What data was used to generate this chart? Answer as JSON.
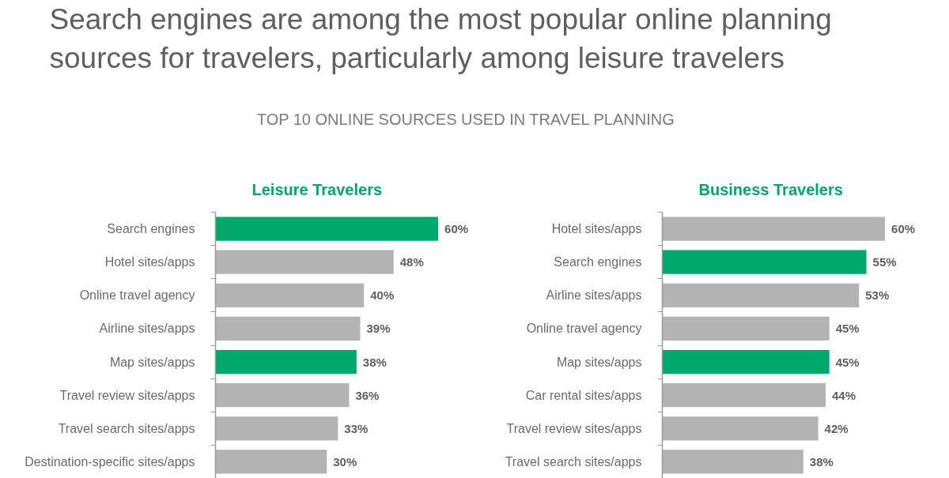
{
  "chart_data": [
    {
      "type": "other",
      "title": "Search engines are among the most popular online planning sources for travelers, particularly among leisure travelers",
      "subtitle": "TOP 10 ONLINE SOURCES USED IN TRAVEL PLANNING"
    },
    {
      "type": "bar",
      "orientation": "horizontal",
      "title": "Leisure Travelers",
      "categories": [
        "Search engines",
        "Hotel sites/apps",
        "Online travel agency",
        "Airline sites/apps",
        "Map sites/apps",
        "Travel review sites/apps",
        "Travel search sites/apps",
        "Destination-specific sites/apps"
      ],
      "values": [
        60,
        48,
        40,
        39,
        38,
        36,
        33,
        30
      ],
      "colors": [
        "#00a86b",
        "#b3b3b3",
        "#b3b3b3",
        "#b3b3b3",
        "#00a86b",
        "#b3b3b3",
        "#b3b3b3",
        "#b3b3b3"
      ],
      "value_labels": [
        "60%",
        "48%",
        "40%",
        "39%",
        "38%",
        "36%",
        "33%",
        "30%"
      ]
    },
    {
      "type": "bar",
      "orientation": "horizontal",
      "title": "Business Travelers",
      "categories": [
        "Hotel sites/apps",
        "Search engines",
        "Airline sites/apps",
        "Online travel agency",
        "Map sites/apps",
        "Car rental sites/apps",
        "Travel review sites/apps",
        "Travel search sites/apps"
      ],
      "values": [
        60,
        55,
        53,
        45,
        45,
        44,
        42,
        38
      ],
      "colors": [
        "#b3b3b3",
        "#00a86b",
        "#b3b3b3",
        "#b3b3b3",
        "#00a86b",
        "#b3b3b3",
        "#b3b3b3",
        "#b3b3b3"
      ],
      "value_labels": [
        "60%",
        "55%",
        "53%",
        "45%",
        "45%",
        "44%",
        "42%",
        "38%"
      ]
    }
  ]
}
